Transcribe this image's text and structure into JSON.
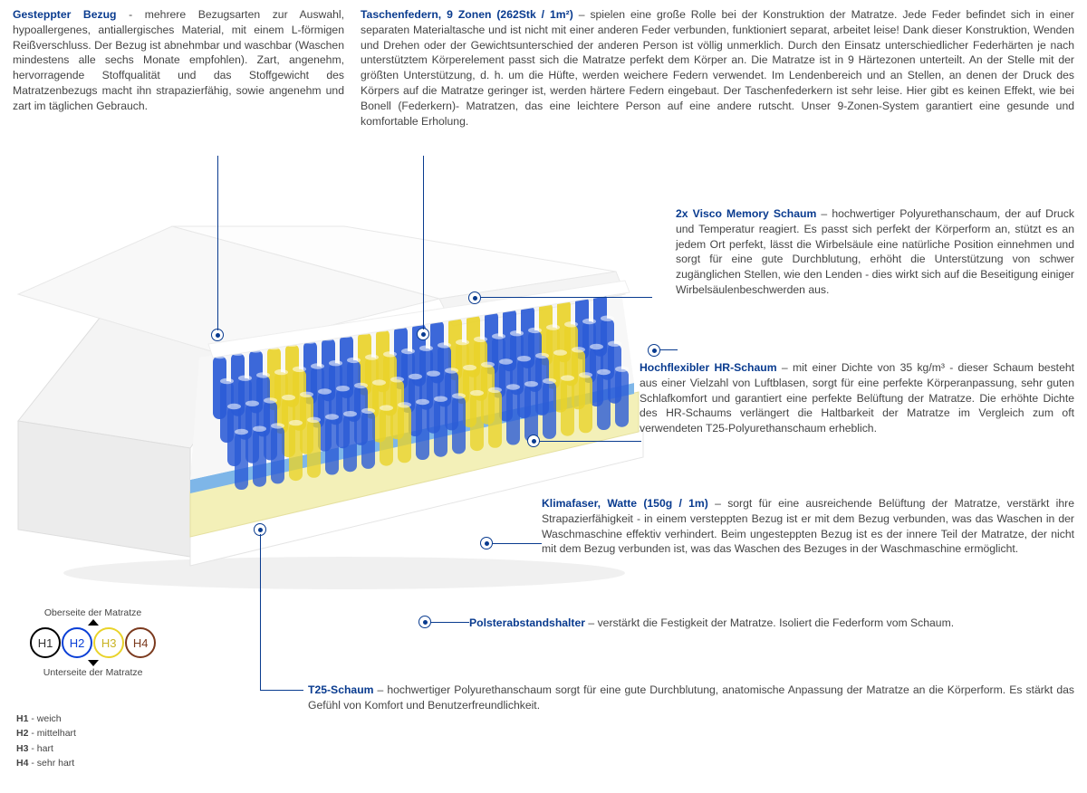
{
  "colors": {
    "heading": "#093b8f",
    "body": "#444444",
    "h1_border": "#000000",
    "h2_border": "#0a3fd6",
    "h3_border": "#e9d32a",
    "h4_border": "#7b3a1e"
  },
  "top": {
    "left": {
      "title": "Gesteppter Bezug",
      "sep": " - ",
      "body": "mehrere Bezugsarten zur Auswahl, hypoallergenes, antiallergisches Material, mit einem L-förmigen Reißverschluss. Der Bezug ist abnehmbar und waschbar (Waschen mindestens alle sechs Monate empfohlen). Zart, angenehm, hervorragende Stoffqualität und das Stoffgewicht des Matratzenbezugs macht ihn strapazierfähig, sowie angenehm und zart im täglichen Gebrauch."
    },
    "right": {
      "title": "Taschenfedern, 9 Zonen (262Stk / 1m²)",
      "sep": " – ",
      "body": "spielen eine große Rolle bei der Konstruktion der Matratze. Jede Feder befindet sich in einer separaten Materialtasche und ist nicht mit einer anderen Feder verbunden, funktioniert separat, arbeitet leise! Dank dieser Konstruktion, Wenden und Drehen oder der Gewichtsunterschied der anderen Person ist völlig unmerklich. Durch den Einsatz unterschiedlicher Federhärten je nach unterstütztem Körperelement passt sich die Matratze perfekt dem Körper an. Die Matratze ist in 9 Härtezonen unterteilt. An der Stelle mit der größten Unterstützung, d. h. um die Hüfte, werden weichere Federn verwendet. Im Lendenbereich und an Stellen, an denen der Druck des Körpers auf die Matratze geringer ist, werden härtere Federn eingebaut. Der Taschenfederkern ist sehr leise. Hier gibt es keinen Effekt, wie bei Bonell (Federkern)- Matratzen, das eine leichtere Person auf eine andere rutscht. Unser 9-Zonen-System garantiert eine gesunde und komfortable Erholung."
    }
  },
  "right": {
    "visco": {
      "title": "2x Visco Memory Schaum",
      "sep": " – ",
      "body": "hochwertiger Polyurethanschaum, der auf Druck und Temperatur reagiert. Es passt sich perfekt der Körperform an, stützt es an jedem Ort perfekt, lässt die Wirbelsäule eine natürliche Position einnehmen und sorgt für eine gute Durchblutung, erhöht die Unterstützung von schwer zugänglichen Stellen, wie den Lenden - dies wirkt sich auf die Beseitigung einiger Wirbelsäulenbeschwerden aus."
    },
    "hr": {
      "title": "Hochflexibler HR-Schaum",
      "sep": " – ",
      "body": "mit einer Dichte von 35 kg/m³ - dieser Schaum besteht aus einer Vielzahl von Luftblasen, sorgt für eine perfekte Körperanpassung, sehr guten Schlafkomfort und garantiert eine perfekte Belüftung der Matratze. Die erhöhte Dichte des HR-Schaums verlängert die Haltbarkeit der Matratze im Vergleich zum oft verwendeten T25-Polyurethanschaum erheblich."
    },
    "klima": {
      "title": "Klimafaser, Watte (150g / 1m)",
      "sep": " – ",
      "body": "sorgt für eine ausreichende Belüftung der Matratze, verstärkt ihre Strapazierfähigkeit - in einem versteppten Bezug ist er mit dem Bezug verbunden, was das Waschen in der Waschmaschine effektiv verhindert. Beim ungesteppten Bezug ist es der innere Teil der Matratze, der nicht mit dem Bezug verbunden ist, was das Waschen des Bezuges in der Waschmaschine ermöglicht."
    },
    "polster": {
      "title": "Polsterabstandshalter",
      "sep": " – ",
      "body": "verstärkt die Festigkeit der Matratze. Isoliert die Federform vom Schaum."
    },
    "t25": {
      "title": "T25-Schaum",
      "sep": " – ",
      "body": "hochwertiger Polyurethanschaum sorgt für eine gute Durchblutung, anatomische Anpassung der Matratze an die Körperform. Es stärkt das Gefühl von Komfort und Benutzerfreundlichkeit."
    }
  },
  "legend": {
    "top_label": "Oberseite der Matratze",
    "bottom_label": "Unterseite der Matratze",
    "items": [
      {
        "code": "H1",
        "desc": "weich"
      },
      {
        "code": "H2",
        "desc": "mittelhart"
      },
      {
        "code": "H3",
        "desc": "hart"
      },
      {
        "code": "H4",
        "desc": "sehr hart"
      }
    ]
  },
  "mattress": {
    "foam_top_color": "#ffffff",
    "visco_color": "#f7f7f2",
    "blue_layer": "#7eb6e8",
    "spring_blue": "#2b5bd6",
    "spring_yellow": "#e9d32a",
    "t25_color": "#f3f0b8",
    "base_color": "#ffffff"
  }
}
